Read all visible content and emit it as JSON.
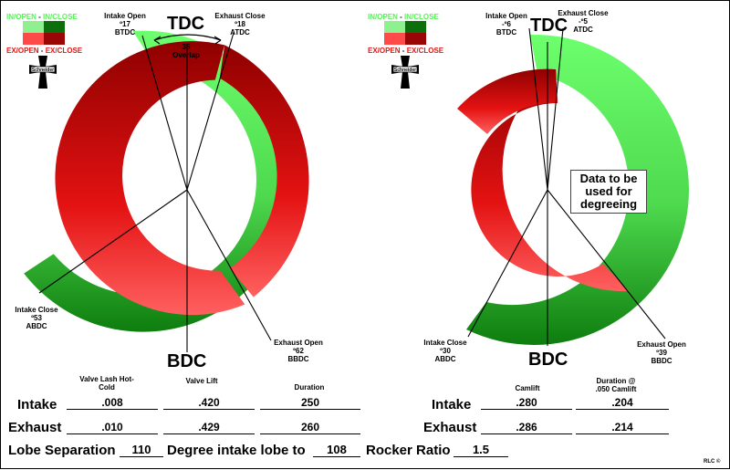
{
  "legend": {
    "in_open": "IN/OPEN",
    "dash": " - ",
    "in_close": "IN/CLOSE",
    "ex_open": "EX/OPEN",
    "ex_close": "EX/CLOSE",
    "logo_text": "Schneider"
  },
  "colors": {
    "intake_open": "#8ff08f",
    "intake_close": "#0c6f0c",
    "exhaust_open": "#ff4a4a",
    "exhaust_close": "#9a0505"
  },
  "left_diagram": {
    "tdc": "TDC",
    "bdc": "BDC",
    "intake_open": {
      "title": "Intake Open",
      "value": "º17",
      "ref": "BTDC"
    },
    "exhaust_close": {
      "title": "Exhaust Close",
      "value": "º18",
      "ref": "ATDC"
    },
    "overlap": {
      "value": "35",
      "label": "Overlap"
    },
    "intake_close": {
      "title": "Intake Close",
      "value": "º53",
      "ref": "ABDC"
    },
    "exhaust_open": {
      "title": "Exhaust Open",
      "value": "º62",
      "ref": "BBDC"
    }
  },
  "right_diagram": {
    "tdc": "TDC",
    "bdc": "BDC",
    "intake_open": {
      "title": "Intake Open",
      "value": "-º6",
      "ref": "BTDC"
    },
    "exhaust_close": {
      "title": "Exhaust Close",
      "value": "-º5",
      "ref": "ATDC"
    },
    "intake_close": {
      "title": "Intake Close",
      "value": "º30",
      "ref": "ABDC"
    },
    "exhaust_open": {
      "title": "Exhaust Open",
      "value": "º39",
      "ref": "BBDC"
    },
    "note": "Data to be used for degreeing"
  },
  "left_table": {
    "headers": {
      "lash": "Valve Lash Hot-Cold",
      "lift": "Valve Lift",
      "duration": "Duration"
    },
    "intake": {
      "label": "Intake",
      "lash": ".008",
      "lift": ".420",
      "duration": "250"
    },
    "exhaust": {
      "label": "Exhaust",
      "lash": ".010",
      "lift": ".429",
      "duration": "260"
    }
  },
  "right_table": {
    "headers": {
      "camlift": "Camlift",
      "duration": "Duration @ .050 Camlift"
    },
    "intake": {
      "label": "Intake",
      "camlift": ".280",
      "duration": ".204"
    },
    "exhaust": {
      "label": "Exhaust",
      "camlift": ".286",
      "duration": ".214"
    }
  },
  "bottom": {
    "lobe_sep_label": "Lobe Separation",
    "lobe_sep_value": "110",
    "intake_lobe_label": "Degree intake lobe to",
    "intake_lobe_value": "108",
    "rocker_label": "Rocker Ratio",
    "rocker_value": "1.5"
  },
  "footer": {
    "credit": "RLC ©"
  }
}
